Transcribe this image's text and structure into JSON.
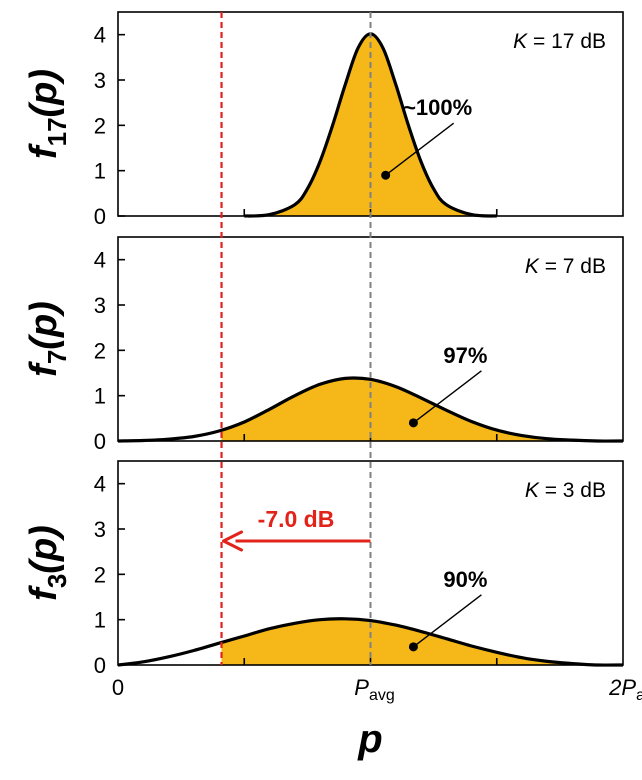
{
  "colors": {
    "fill": "#f5b818",
    "curve": "#000000",
    "avg_line": "#808080",
    "shift": "#e2231a"
  },
  "x_axis": {
    "label": "p",
    "ticks": [
      {
        "value": 0,
        "main": "0",
        "sub": ""
      },
      {
        "value": 1,
        "main": "P",
        "sub": "avg"
      },
      {
        "value": 2,
        "main": "2P",
        "sub": "a"
      }
    ],
    "range": [
      0,
      2
    ]
  },
  "markers": {
    "avg_x": 1,
    "cutoff_x": 0.41
  },
  "shift_annotation": {
    "label": "-7.0 dB"
  },
  "chart_data": [
    {
      "type": "area",
      "ylabel_main": "f",
      "ylabel_sub": "17",
      "ylabel_arg": "(p)",
      "k_label_var": "K",
      "k_label_value": " = 17 dB",
      "share_label": "~100%",
      "share_point": [
        1.06,
        0.9
      ],
      "ylim": [
        0,
        4.5
      ],
      "yticks": [
        0,
        1,
        2,
        3,
        4
      ],
      "x": [
        0.5,
        0.6,
        0.7,
        0.75,
        0.8,
        0.85,
        0.9,
        0.95,
        1.0,
        1.05,
        1.1,
        1.15,
        1.2,
        1.25,
        1.3,
        1.4,
        1.5
      ],
      "y": [
        0.0,
        0.03,
        0.25,
        0.6,
        1.2,
        2.0,
        2.9,
        3.7,
        4.02,
        3.7,
        2.9,
        2.0,
        1.2,
        0.6,
        0.25,
        0.03,
        0.0
      ]
    },
    {
      "type": "area",
      "ylabel_main": "f",
      "ylabel_sub": "7",
      "ylabel_arg": "(p)",
      "k_label_var": "K",
      "k_label_value": " = 7 dB",
      "share_label": "97%",
      "share_point": [
        1.17,
        0.4
      ],
      "ylim": [
        0,
        4.5
      ],
      "yticks": [
        0,
        1,
        2,
        3,
        4
      ],
      "x": [
        0,
        0.1,
        0.2,
        0.3,
        0.4,
        0.5,
        0.6,
        0.7,
        0.8,
        0.9,
        1.0,
        1.1,
        1.2,
        1.3,
        1.4,
        1.5,
        1.6,
        1.7,
        1.8,
        1.9,
        2.0
      ],
      "y": [
        0.0,
        0.01,
        0.04,
        0.1,
        0.22,
        0.42,
        0.7,
        1.0,
        1.25,
        1.38,
        1.36,
        1.2,
        0.95,
        0.68,
        0.43,
        0.24,
        0.12,
        0.05,
        0.02,
        0.0,
        0.0
      ]
    },
    {
      "type": "area",
      "ylabel_main": "f",
      "ylabel_sub": "3",
      "ylabel_arg": "(p)",
      "k_label_var": "K",
      "k_label_value": " = 3 dB",
      "share_label": "90%",
      "share_point": [
        1.17,
        0.4
      ],
      "ylim": [
        0,
        4.5
      ],
      "yticks": [
        0,
        1,
        2,
        3,
        4
      ],
      "x": [
        0,
        0.1,
        0.2,
        0.3,
        0.4,
        0.5,
        0.6,
        0.7,
        0.8,
        0.9,
        1.0,
        1.1,
        1.2,
        1.3,
        1.4,
        1.5,
        1.6,
        1.7,
        1.8,
        1.9,
        2.0
      ],
      "y": [
        0.0,
        0.07,
        0.18,
        0.32,
        0.48,
        0.64,
        0.8,
        0.92,
        1.0,
        1.02,
        0.98,
        0.88,
        0.74,
        0.58,
        0.42,
        0.28,
        0.16,
        0.08,
        0.03,
        0.0,
        0.0
      ]
    }
  ]
}
